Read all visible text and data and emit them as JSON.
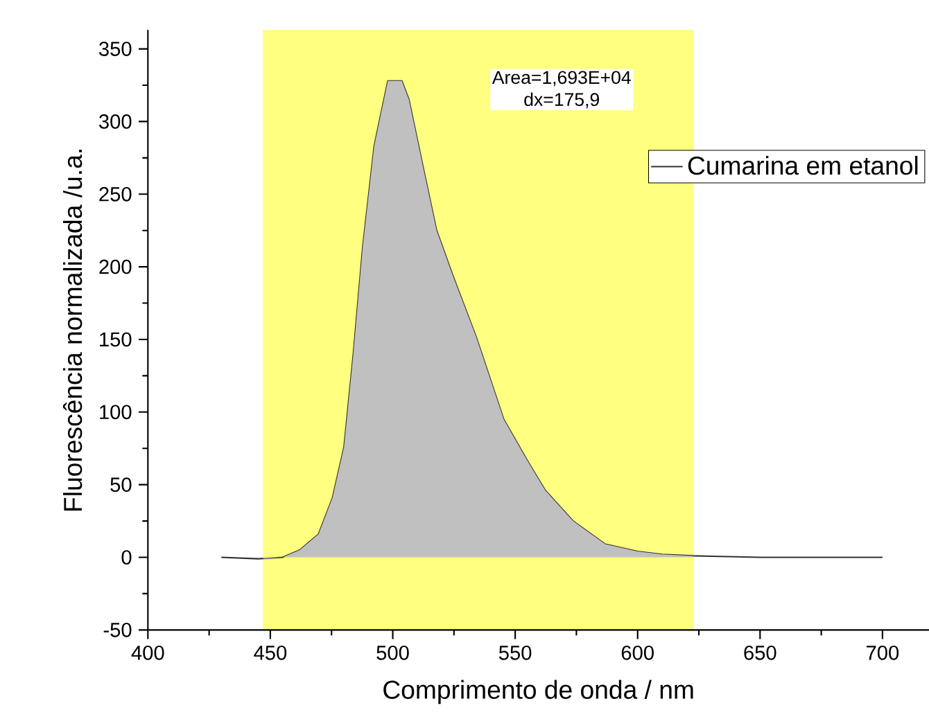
{
  "chart_data": {
    "type": "line",
    "xlabel": "Comprimento de onda / nm",
    "ylabel": "Fluorescência normalizada /u.a.",
    "series": [
      {
        "name": "Cumarina em etanol",
        "color": "#303030",
        "x": [
          430,
          445,
          455,
          462,
          469.7,
          475.4,
          480.1,
          483.9,
          487.7,
          492.4,
          498,
          503.7,
          506.6,
          512.2,
          517.9,
          524.5,
          534,
          545.3,
          554.8,
          562.3,
          573.6,
          586.8,
          600,
          610,
          623,
          650,
          700
        ],
        "values": [
          0,
          -1,
          0,
          5,
          16,
          41,
          76,
          140,
          213,
          283,
          328,
          328,
          315,
          270,
          225,
          194,
          152,
          95,
          67,
          46,
          25,
          9,
          4,
          2,
          1,
          0,
          0
        ]
      },
      {
        "type": "area",
        "color": "#c0c0c0",
        "x": [
          447.1,
          455,
          462,
          469.7,
          475.4,
          480.1,
          483.9,
          487.7,
          492.4,
          498,
          503.7,
          506.6,
          512.2,
          517.9,
          524.5,
          534,
          545.3,
          554.8,
          562.3,
          573.6,
          586.8,
          600,
          610,
          622.8
        ],
        "values": [
          -1,
          0,
          5,
          16,
          41,
          76,
          140,
          213,
          283,
          328,
          328,
          315,
          270,
          225,
          194,
          152,
          95,
          67,
          46,
          25,
          9,
          4,
          2,
          1
        ]
      }
    ],
    "bands": [
      {
        "axis": "x",
        "from": 447.1,
        "to": 622.8,
        "color": "#ffff80"
      }
    ],
    "annotations": [
      "Area=1,693E+04",
      "dx=175,9"
    ],
    "xlim": [
      400,
      719
    ],
    "ylim": [
      -50,
      363
    ],
    "xticks": [
      400,
      450,
      500,
      550,
      600,
      650,
      700
    ],
    "yticks": [
      -50,
      0,
      50,
      100,
      150,
      200,
      250,
      300,
      350
    ],
    "grid": false,
    "legend": "top right",
    "marker": "none",
    "line_style": "solid"
  }
}
